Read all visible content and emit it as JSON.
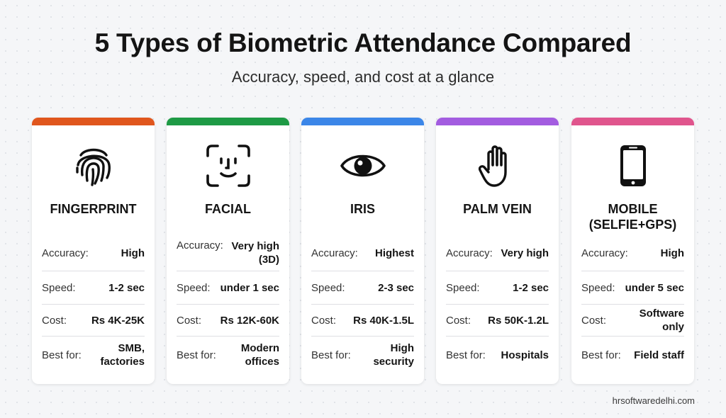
{
  "title": "5 Types of Biometric Attendance Compared",
  "subtitle": "Accuracy, speed, and cost at a glance",
  "labels": {
    "accuracy": "Accuracy:",
    "speed": "Speed:",
    "cost": "Cost:",
    "best_for": "Best for:"
  },
  "cards": [
    {
      "name": "FINGERPRINT",
      "icon": "fingerprint-icon",
      "accent": "#e0561d",
      "accuracy": "High",
      "speed": "1-2 sec",
      "cost": "Rs 4K-25K",
      "best_for": "SMB, factories"
    },
    {
      "name": "FACIAL",
      "icon": "face-scan-icon",
      "accent": "#1e9a45",
      "accuracy": "Very high (3D)",
      "speed": "under 1 sec",
      "cost": "Rs 12K-60K",
      "best_for": "Modern offices"
    },
    {
      "name": "IRIS",
      "icon": "eye-icon",
      "accent": "#3b86e8",
      "accuracy": "Highest",
      "speed": "2-3 sec",
      "cost": "Rs 40K-1.5L",
      "best_for": "High security"
    },
    {
      "name": "PALM VEIN",
      "icon": "palm-icon",
      "accent": "#a35ce0",
      "accuracy": "Very high",
      "speed": "1-2 sec",
      "cost": "Rs 50K-1.2L",
      "best_for": "Hospitals"
    },
    {
      "name": "MOBILE (SELFIE+GPS)",
      "icon": "mobile-phone-icon",
      "accent": "#e0558d",
      "accuracy": "High",
      "speed": "under 5 sec",
      "cost": "Software only",
      "best_for": "Field staff"
    }
  ],
  "watermark": "hrsoftwaredelhi.com"
}
